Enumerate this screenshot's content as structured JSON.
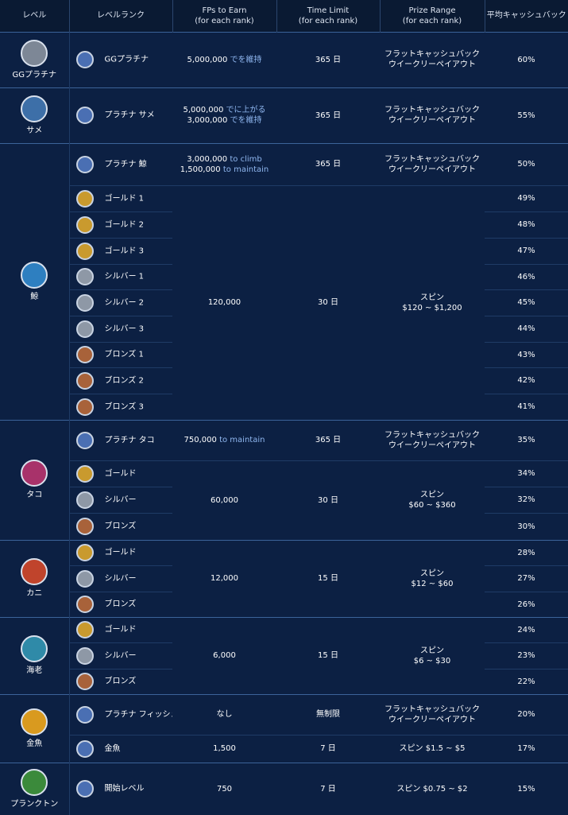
{
  "header": {
    "columns": [
      [
        "レベル"
      ],
      [
        "レベルランク"
      ],
      [
        "FPs to Earn",
        "(for each rank)"
      ],
      [
        "Time Limit",
        "(for each rank)"
      ],
      [
        "Prize Range",
        "(for each rank)"
      ],
      [
        "平均キャッシュバック"
      ]
    ]
  },
  "levels": [
    {
      "name": "GGプラチナ",
      "tiers": [
        {
          "fps": [
            {
              "amount": "5,000,000",
              "note": "でを維持"
            }
          ],
          "time": "365 日",
          "prize": [
            "フラットキャッシュバック",
            "ウイークリーペイアウト"
          ],
          "ranks": [
            {
              "name": "GGプラチナ",
              "cashback": "60%"
            }
          ]
        }
      ]
    },
    {
      "name": "サメ",
      "tiers": [
        {
          "fps": [
            {
              "amount": "5,000,000",
              "note": "でに上がる"
            },
            {
              "amount": "3,000,000",
              "note": "でを維持"
            }
          ],
          "time": "365 日",
          "prize": [
            "フラットキャッシュバック",
            "ウイークリーペイアウト"
          ],
          "ranks": [
            {
              "name": "プラチナ サメ",
              "cashback": "55%"
            }
          ]
        }
      ]
    },
    {
      "name": "鯨",
      "tiers": [
        {
          "fps": [
            {
              "amount": "3,000,000",
              "note": "to climb"
            },
            {
              "amount": "1,500,000",
              "note": "to maintain"
            }
          ],
          "time": "365 日",
          "prize": [
            "フラットキャッシュバック",
            "ウイークリーペイアウト"
          ],
          "ranks": [
            {
              "name": "プラチナ 鯨",
              "cashback": "50%"
            }
          ]
        },
        {
          "fps": [
            {
              "amount": "120,000"
            }
          ],
          "time": "30 日",
          "prize": [
            "スピン",
            "$120 ~ $1,200"
          ],
          "ranks": [
            {
              "name": "ゴールド 1",
              "cashback": "49%"
            },
            {
              "name": "ゴールド 2",
              "cashback": "48%"
            },
            {
              "name": "ゴールド 3",
              "cashback": "47%"
            },
            {
              "name": "シルバー 1",
              "cashback": "46%"
            },
            {
              "name": "シルバー 2",
              "cashback": "45%"
            },
            {
              "name": "シルバー 3",
              "cashback": "44%"
            },
            {
              "name": "ブロンズ 1",
              "cashback": "43%"
            },
            {
              "name": "ブロンズ 2",
              "cashback": "42%"
            },
            {
              "name": "ブロンズ 3",
              "cashback": "41%"
            }
          ]
        }
      ]
    },
    {
      "name": "タコ",
      "tiers": [
        {
          "fps": [
            {
              "amount": "750,000",
              "note": "to maintain"
            }
          ],
          "time": "365 日",
          "prize": [
            "フラットキャッシュバック",
            "ウイークリーペイアウト"
          ],
          "ranks": [
            {
              "name": "プラチナ タコ",
              "cashback": "35%"
            }
          ]
        },
        {
          "fps": [
            {
              "amount": "60,000"
            }
          ],
          "time": "30 日",
          "prize": [
            "スピン",
            "$60 ~ $360"
          ],
          "ranks": [
            {
              "name": "ゴールド",
              "cashback": "34%"
            },
            {
              "name": "シルバー",
              "cashback": "32%"
            },
            {
              "name": "ブロンズ",
              "cashback": "30%"
            }
          ]
        }
      ]
    },
    {
      "name": "カニ",
      "tiers": [
        {
          "fps": [
            {
              "amount": "12,000"
            }
          ],
          "time": "15 日",
          "prize": [
            "スピン",
            "$12 ~ $60"
          ],
          "ranks": [
            {
              "name": "ゴールド",
              "cashback": "28%"
            },
            {
              "name": "シルバー",
              "cashback": "27%"
            },
            {
              "name": "ブロンズ",
              "cashback": "26%"
            }
          ]
        }
      ]
    },
    {
      "name": "海老",
      "tiers": [
        {
          "fps": [
            {
              "amount": "6,000"
            }
          ],
          "time": "15 日",
          "prize": [
            "スピン",
            "$6 ~ $30"
          ],
          "ranks": [
            {
              "name": "ゴールド",
              "cashback": "24%"
            },
            {
              "name": "シルバー",
              "cashback": "23%"
            },
            {
              "name": "ブロンズ",
              "cashback": "22%"
            }
          ]
        }
      ]
    },
    {
      "name": "金魚",
      "tiers": [
        {
          "fps": [
            {
              "amount": "なし"
            }
          ],
          "time": "無制限",
          "prize": [
            "フラットキャッシュバック",
            "ウイークリーペイアウト"
          ],
          "ranks": [
            {
              "name": "プラチナ フィッシュ",
              "cashback": "20%"
            }
          ]
        },
        {
          "fps": [
            {
              "amount": "1,500"
            }
          ],
          "time": "7 日",
          "prize": [
            "スピン $1.5 ~ $5"
          ],
          "ranks": [
            {
              "name": "金魚",
              "cashback": "17%"
            }
          ]
        }
      ]
    },
    {
      "name": "プランクトン",
      "tiers": [
        {
          "fps": [
            {
              "amount": "750"
            }
          ],
          "time": "7 日",
          "prize": [
            "スピン $0.75 ~ $2"
          ],
          "ranks": [
            {
              "name": "開始レベル",
              "cashback": "15%"
            }
          ]
        }
      ]
    }
  ]
}
